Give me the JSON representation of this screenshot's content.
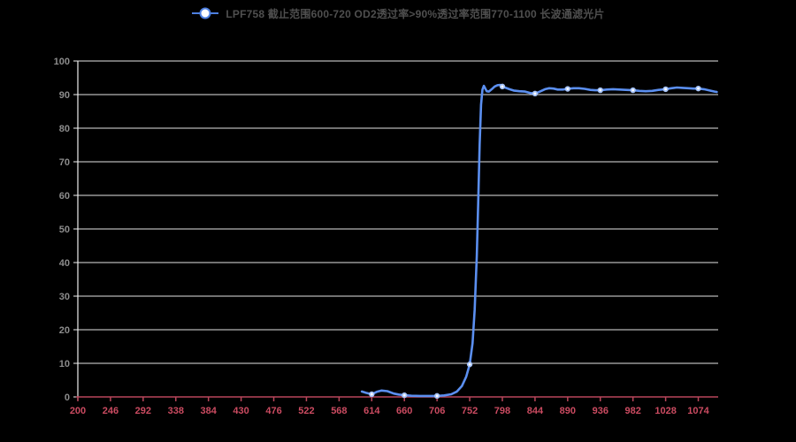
{
  "legend": {
    "label": "LPF758 截止范围600-720 OD2透过率>90%透过率范围770-1100 长波通滤光片"
  },
  "colors": {
    "background": "#000000",
    "line": "#5b8ff0",
    "marker_fill": "#ffffff",
    "marker_ring": "#a6c3f8",
    "legend_icon_stroke": "#4d7fe0",
    "x_axis": "#b8465a",
    "x_label": "#cb4b61",
    "y_label": "#8c8c8c",
    "grid": "#e3e3e3",
    "axis_y": "#f0f0f0",
    "legend_text": "#4f4f4f"
  },
  "chart_data": {
    "type": "line",
    "title": "",
    "xlabel": "",
    "ylabel": "",
    "grid": true,
    "legend_position": "top-center",
    "xlim": [
      200,
      1102
    ],
    "ylim": [
      0,
      100
    ],
    "x_ticks": [
      200,
      246,
      292,
      338,
      384,
      430,
      476,
      522,
      568,
      614,
      660,
      706,
      752,
      798,
      844,
      890,
      936,
      982,
      1028,
      1074
    ],
    "y_ticks": [
      0,
      10,
      20,
      30,
      40,
      50,
      60,
      70,
      80,
      90,
      100
    ],
    "series": [
      {
        "name": "LPF758 截止范围600-720 OD2透过率>90%透过率范围770-1100 长波通滤光片",
        "points": [
          [
            600,
            1.6
          ],
          [
            606,
            1.2
          ],
          [
            614,
            0.8
          ],
          [
            621,
            1.5
          ],
          [
            628,
            1.9
          ],
          [
            636,
            1.7
          ],
          [
            645,
            1.0
          ],
          [
            652,
            0.7
          ],
          [
            660,
            0.5
          ],
          [
            670,
            0.35
          ],
          [
            682,
            0.3
          ],
          [
            694,
            0.28
          ],
          [
            706,
            0.3
          ],
          [
            716,
            0.45
          ],
          [
            726,
            0.8
          ],
          [
            734,
            1.6
          ],
          [
            741,
            3.2
          ],
          [
            747,
            6.0
          ],
          [
            752,
            9.7
          ],
          [
            756,
            16
          ],
          [
            759,
            26
          ],
          [
            762,
            42
          ],
          [
            764,
            58
          ],
          [
            766,
            75
          ],
          [
            768,
            87
          ],
          [
            770,
            91.5
          ],
          [
            772,
            92.6
          ],
          [
            774,
            91.8
          ],
          [
            776,
            91.0
          ],
          [
            779,
            90.9
          ],
          [
            783,
            91.6
          ],
          [
            787,
            92.4
          ],
          [
            791,
            92.8
          ],
          [
            795,
            92.9
          ],
          [
            798,
            92.4
          ],
          [
            803,
            92.0
          ],
          [
            808,
            91.6
          ],
          [
            814,
            91.2
          ],
          [
            822,
            91.0
          ],
          [
            830,
            90.9
          ],
          [
            837,
            90.5
          ],
          [
            844,
            90.3
          ],
          [
            851,
            90.9
          ],
          [
            858,
            91.6
          ],
          [
            864,
            91.9
          ],
          [
            870,
            91.8
          ],
          [
            876,
            91.5
          ],
          [
            883,
            91.5
          ],
          [
            890,
            91.7
          ],
          [
            898,
            91.9
          ],
          [
            906,
            91.9
          ],
          [
            914,
            91.7
          ],
          [
            922,
            91.4
          ],
          [
            929,
            91.3
          ],
          [
            936,
            91.3
          ],
          [
            945,
            91.5
          ],
          [
            954,
            91.6
          ],
          [
            963,
            91.5
          ],
          [
            972,
            91.4
          ],
          [
            982,
            91.3
          ],
          [
            991,
            91.1
          ],
          [
            1000,
            91.0
          ],
          [
            1009,
            91.1
          ],
          [
            1018,
            91.4
          ],
          [
            1028,
            91.6
          ],
          [
            1036,
            91.9
          ],
          [
            1044,
            92.1
          ],
          [
            1052,
            92.0
          ],
          [
            1060,
            91.9
          ],
          [
            1067,
            91.8
          ],
          [
            1074,
            91.8
          ],
          [
            1082,
            91.6
          ],
          [
            1090,
            91.2
          ],
          [
            1097,
            90.9
          ],
          [
            1100,
            90.8
          ]
        ],
        "markers": [
          [
            614,
            0.8
          ],
          [
            660,
            0.5
          ],
          [
            706,
            0.3
          ],
          [
            752,
            9.7
          ],
          [
            798,
            92.4
          ],
          [
            844,
            90.3
          ],
          [
            890,
            91.7
          ],
          [
            936,
            91.3
          ],
          [
            982,
            91.3
          ],
          [
            1028,
            91.6
          ],
          [
            1074,
            91.8
          ]
        ]
      }
    ]
  }
}
